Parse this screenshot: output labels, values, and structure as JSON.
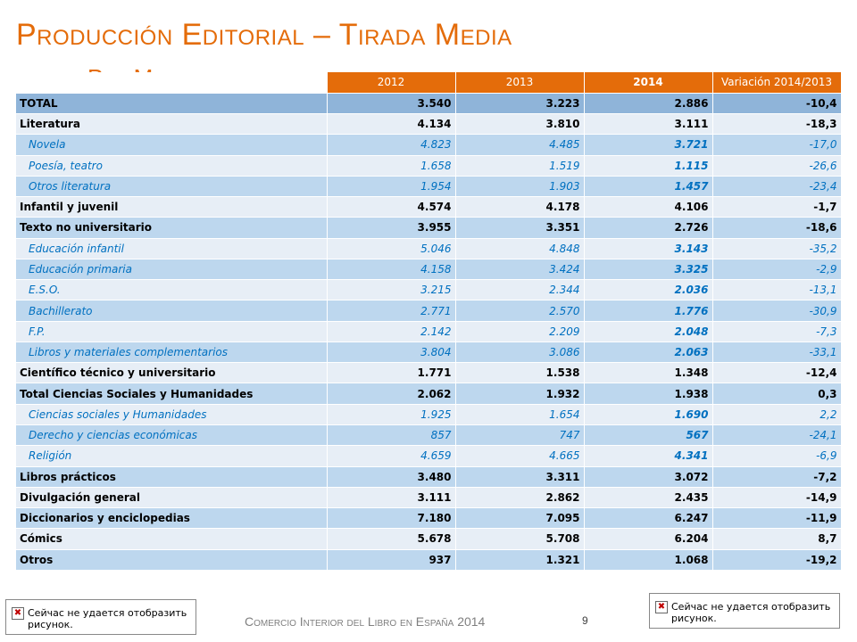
{
  "title": "Producción Editorial – Tirada Media",
  "subtitle": "Por Materias",
  "table": {
    "headers": [
      "2012",
      "2013",
      "2014",
      "Variación 2014/2013"
    ],
    "rows": [
      {
        "label": "TOTAL",
        "v2012": "3.540",
        "v2013": "3.223",
        "v2014": "2.886",
        "var": "-10,4"
      },
      {
        "label": "Literatura",
        "v2012": "4.134",
        "v2013": "3.810",
        "v2014": "3.111",
        "var": "-18,3"
      },
      {
        "label": "Novela",
        "v2012": "4.823",
        "v2013": "4.485",
        "v2014": "3.721",
        "var": "-17,0"
      },
      {
        "label": "Poesía, teatro",
        "v2012": "1.658",
        "v2013": "1.519",
        "v2014": "1.115",
        "var": "-26,6"
      },
      {
        "label": "Otros literatura",
        "v2012": "1.954",
        "v2013": "1.903",
        "v2014": "1.457",
        "var": "-23,4"
      },
      {
        "label": "Infantil y juvenil",
        "v2012": "4.574",
        "v2013": "4.178",
        "v2014": "4.106",
        "var": "-1,7"
      },
      {
        "label": "Texto no universitario",
        "v2012": "3.955",
        "v2013": "3.351",
        "v2014": "2.726",
        "var": "-18,6"
      },
      {
        "label": "Educación infantil",
        "v2012": "5.046",
        "v2013": "4.848",
        "v2014": "3.143",
        "var": "-35,2"
      },
      {
        "label": "Educación primaria",
        "v2012": "4.158",
        "v2013": "3.424",
        "v2014": "3.325",
        "var": "-2,9"
      },
      {
        "label": "E.S.O.",
        "v2012": "3.215",
        "v2013": "2.344",
        "v2014": "2.036",
        "var": "-13,1"
      },
      {
        "label": "Bachillerato",
        "v2012": "2.771",
        "v2013": "2.570",
        "v2014": "1.776",
        "var": "-30,9"
      },
      {
        "label": "F.P.",
        "v2012": "2.142",
        "v2013": "2.209",
        "v2014": "2.048",
        "var": "-7,3"
      },
      {
        "label": "Libros y materiales complementarios",
        "v2012": "3.804",
        "v2013": "3.086",
        "v2014": "2.063",
        "var": "-33,1"
      },
      {
        "label": "Científico  técnico y universitario",
        "v2012": "1.771",
        "v2013": "1.538",
        "v2014": "1.348",
        "var": "-12,4"
      },
      {
        "label": "Total Ciencias Sociales y Humanidades",
        "v2012": "2.062",
        "v2013": "1.932",
        "v2014": "1.938",
        "var": "0,3"
      },
      {
        "label": "Ciencias sociales y Humanidades",
        "v2012": "1.925",
        "v2013": "1.654",
        "v2014": "1.690",
        "var": "2,2"
      },
      {
        "label": "Derecho y ciencias económicas",
        "v2012": "857",
        "v2013": "747",
        "v2014": "567",
        "var": "-24,1"
      },
      {
        "label": "Religión",
        "v2012": "4.659",
        "v2013": "4.665",
        "v2014": "4.341",
        "var": "-6,9"
      },
      {
        "label": "Libros prácticos",
        "v2012": "3.480",
        "v2013": "3.311",
        "v2014": "3.072",
        "var": "-7,2"
      },
      {
        "label": "Divulgación general",
        "v2012": "3.111",
        "v2013": "2.862",
        "v2014": "2.435",
        "var": "-14,9"
      },
      {
        "label": "Diccionarios y enciclopedias",
        "v2012": "7.180",
        "v2013": "7.095",
        "v2014": "6.247",
        "var": "-11,9"
      },
      {
        "label": "Cómics",
        "v2012": "5.678",
        "v2013": "5.708",
        "v2014": "6.204",
        "var": "8,7"
      },
      {
        "label": "Otros",
        "v2012": "937",
        "v2013": "1.321",
        "v2014": "1.068",
        "var": "-19,2"
      }
    ]
  },
  "footer": {
    "text": "Comercio Interior del Libro en España 2014",
    "page": "9"
  },
  "broken_image": {
    "message": "Сейчас не удается отобразить рисунок."
  },
  "colors": {
    "accent": "#e46c0a",
    "subrow_text": "#0070c0",
    "band_dark": "#bdd7ee",
    "band_light": "#e7eef6",
    "total_band": "#8fb4d9"
  }
}
